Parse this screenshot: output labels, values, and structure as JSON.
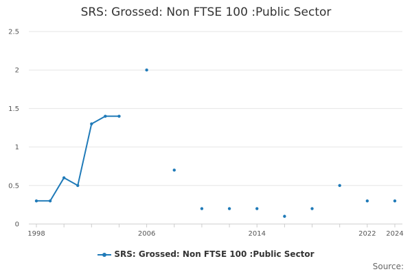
{
  "chart_data": {
    "type": "line",
    "title": "SRS: Grossed: Non FTSE 100 :Public Sector",
    "xlabel": "",
    "ylabel": "",
    "xlim": [
      1998,
      2024
    ],
    "ylim": [
      0,
      2.5
    ],
    "x_ticks": [
      1998,
      2000,
      2002,
      2004,
      2006,
      2008,
      2010,
      2012,
      2014,
      2016,
      2018,
      2020,
      2022,
      2024
    ],
    "x_tick_labels": [
      "1998",
      "2006",
      "2014",
      "2022",
      "2024"
    ],
    "y_ticks": [
      "0",
      "0.5",
      "1",
      "1.5",
      "2",
      "2.5"
    ],
    "grid": true,
    "legend_position": "bottom",
    "series": [
      {
        "name": "SRS: Grossed: Non FTSE 100 :Public Sector",
        "color": "#1f7ab8",
        "points": [
          {
            "x": 1998,
            "y": 0.3
          },
          {
            "x": 1999,
            "y": 0.3
          },
          {
            "x": 2000,
            "y": 0.6
          },
          {
            "x": 2001,
            "y": 0.5
          },
          {
            "x": 2002,
            "y": 1.3
          },
          {
            "x": 2003,
            "y": 1.4
          },
          {
            "x": 2004,
            "y": 1.4
          },
          {
            "x": 2005,
            "y": null
          },
          {
            "x": 2006,
            "y": 2.0
          },
          {
            "x": 2007,
            "y": null
          },
          {
            "x": 2008,
            "y": 0.7
          },
          {
            "x": 2009,
            "y": null
          },
          {
            "x": 2010,
            "y": 0.2
          },
          {
            "x": 2011,
            "y": null
          },
          {
            "x": 2012,
            "y": 0.2
          },
          {
            "x": 2013,
            "y": null
          },
          {
            "x": 2014,
            "y": 0.2
          },
          {
            "x": 2015,
            "y": null
          },
          {
            "x": 2016,
            "y": 0.1
          },
          {
            "x": 2017,
            "y": null
          },
          {
            "x": 2018,
            "y": 0.2
          },
          {
            "x": 2019,
            "y": null
          },
          {
            "x": 2020,
            "y": 0.5
          },
          {
            "x": 2021,
            "y": null
          },
          {
            "x": 2022,
            "y": 0.3
          },
          {
            "x": 2023,
            "y": null
          },
          {
            "x": 2024,
            "y": 0.3
          }
        ]
      }
    ]
  },
  "legend": {
    "label": "SRS: Grossed: Non FTSE 100 :Public Sector"
  },
  "source": {
    "label": "Source:"
  }
}
